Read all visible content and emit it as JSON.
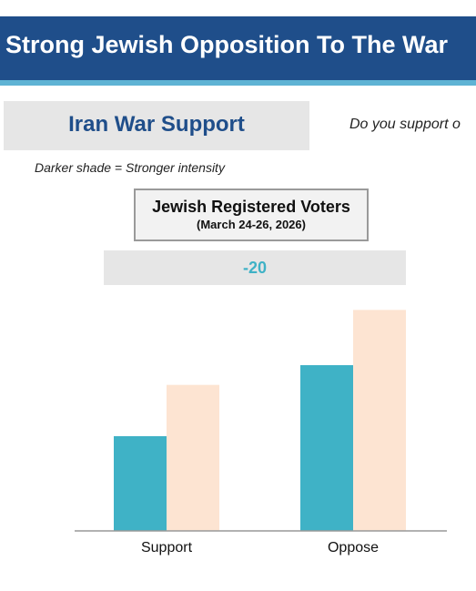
{
  "header": {
    "title": "Strong Jewish Opposition To The War",
    "banner_color": "#1f4e8a",
    "stripe_color": "#5fb3d4"
  },
  "subtitle": "Iran War Support",
  "question": "Do you support o",
  "note": "Darker shade = Stronger intensity",
  "group": {
    "title": "Jewish Registered Voters",
    "date": "(March 24-26, 2026)"
  },
  "net": "-20",
  "chart_data": {
    "type": "bar",
    "title": "",
    "categories": [
      "Support",
      "Oppose"
    ],
    "series": [
      {
        "values": [
          24,
          42
        ],
        "color": "#3fb2c6"
      },
      {
        "values": [
          37,
          56
        ],
        "color": "#fde4d2"
      }
    ],
    "xlabel": "",
    "ylabel": "",
    "ylim": [
      0,
      60
    ],
    "grid": false,
    "legend": "none"
  }
}
